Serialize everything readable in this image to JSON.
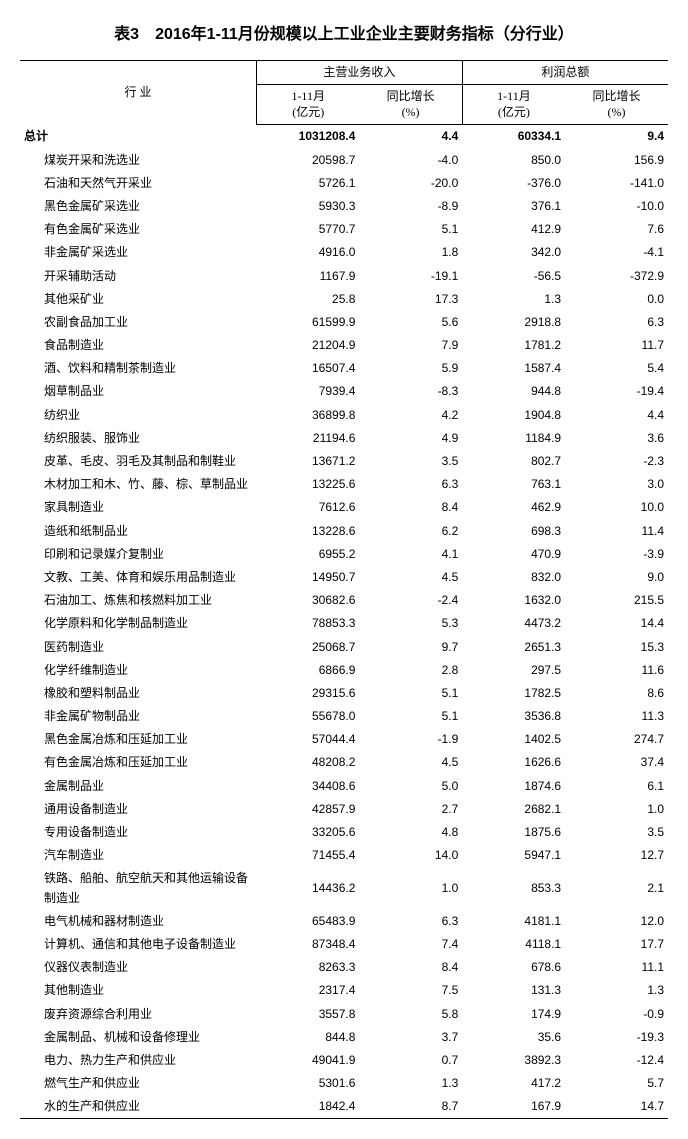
{
  "title": "表3　2016年1-11月份规模以上工业企业主要财务指标（分行业）",
  "header": {
    "industry": "行 业",
    "group1": "主营业务收入",
    "group2": "利润总额",
    "sub_period_line1": "1-11月",
    "sub_period_line2": "(亿元)",
    "sub_growth_line1": "同比增长",
    "sub_growth_line2": "(%)"
  },
  "total": {
    "label": "总计",
    "v1": "1031208.4",
    "v2": "4.4",
    "v3": "60334.1",
    "v4": "9.4"
  },
  "rows": [
    {
      "label": "煤炭开采和洗选业",
      "v1": "20598.7",
      "v2": "-4.0",
      "v3": "850.0",
      "v4": "156.9"
    },
    {
      "label": "石油和天然气开采业",
      "v1": "5726.1",
      "v2": "-20.0",
      "v3": "-376.0",
      "v4": "-141.0"
    },
    {
      "label": "黑色金属矿采选业",
      "v1": "5930.3",
      "v2": "-8.9",
      "v3": "376.1",
      "v4": "-10.0"
    },
    {
      "label": "有色金属矿采选业",
      "v1": "5770.7",
      "v2": "5.1",
      "v3": "412.9",
      "v4": "7.6"
    },
    {
      "label": "非金属矿采选业",
      "v1": "4916.0",
      "v2": "1.8",
      "v3": "342.0",
      "v4": "-4.1"
    },
    {
      "label": "开采辅助活动",
      "v1": "1167.9",
      "v2": "-19.1",
      "v3": "-56.5",
      "v4": "-372.9"
    },
    {
      "label": "其他采矿业",
      "v1": "25.8",
      "v2": "17.3",
      "v3": "1.3",
      "v4": "0.0"
    },
    {
      "label": "农副食品加工业",
      "v1": "61599.9",
      "v2": "5.6",
      "v3": "2918.8",
      "v4": "6.3"
    },
    {
      "label": "食品制造业",
      "v1": "21204.9",
      "v2": "7.9",
      "v3": "1781.2",
      "v4": "11.7"
    },
    {
      "label": "酒、饮料和精制茶制造业",
      "v1": "16507.4",
      "v2": "5.9",
      "v3": "1587.4",
      "v4": "5.4"
    },
    {
      "label": "烟草制品业",
      "v1": "7939.4",
      "v2": "-8.3",
      "v3": "944.8",
      "v4": "-19.4"
    },
    {
      "label": "纺织业",
      "v1": "36899.8",
      "v2": "4.2",
      "v3": "1904.8",
      "v4": "4.4"
    },
    {
      "label": "纺织服装、服饰业",
      "v1": "21194.6",
      "v2": "4.9",
      "v3": "1184.9",
      "v4": "3.6"
    },
    {
      "label": "皮革、毛皮、羽毛及其制品和制鞋业",
      "v1": "13671.2",
      "v2": "3.5",
      "v3": "802.7",
      "v4": "-2.3"
    },
    {
      "label": "木材加工和木、竹、藤、棕、草制品业",
      "v1": "13225.6",
      "v2": "6.3",
      "v3": "763.1",
      "v4": "3.0"
    },
    {
      "label": "家具制造业",
      "v1": "7612.6",
      "v2": "8.4",
      "v3": "462.9",
      "v4": "10.0"
    },
    {
      "label": "造纸和纸制品业",
      "v1": "13228.6",
      "v2": "6.2",
      "v3": "698.3",
      "v4": "11.4"
    },
    {
      "label": "印刷和记录媒介复制业",
      "v1": "6955.2",
      "v2": "4.1",
      "v3": "470.9",
      "v4": "-3.9"
    },
    {
      "label": "文教、工美、体育和娱乐用品制造业",
      "v1": "14950.7",
      "v2": "4.5",
      "v3": "832.0",
      "v4": "9.0"
    },
    {
      "label": "石油加工、炼焦和核燃料加工业",
      "v1": "30682.6",
      "v2": "-2.4",
      "v3": "1632.0",
      "v4": "215.5"
    },
    {
      "label": "化学原料和化学制品制造业",
      "v1": "78853.3",
      "v2": "5.3",
      "v3": "4473.2",
      "v4": "14.4"
    },
    {
      "label": "医药制造业",
      "v1": "25068.7",
      "v2": "9.7",
      "v3": "2651.3",
      "v4": "15.3"
    },
    {
      "label": "化学纤维制造业",
      "v1": "6866.9",
      "v2": "2.8",
      "v3": "297.5",
      "v4": "11.6"
    },
    {
      "label": "橡胶和塑料制品业",
      "v1": "29315.6",
      "v2": "5.1",
      "v3": "1782.5",
      "v4": "8.6"
    },
    {
      "label": "非金属矿物制品业",
      "v1": "55678.0",
      "v2": "5.1",
      "v3": "3536.8",
      "v4": "11.3"
    },
    {
      "label": "黑色金属冶炼和压延加工业",
      "v1": "57044.4",
      "v2": "-1.9",
      "v3": "1402.5",
      "v4": "274.7"
    },
    {
      "label": "有色金属冶炼和压延加工业",
      "v1": "48208.2",
      "v2": "4.5",
      "v3": "1626.6",
      "v4": "37.4"
    },
    {
      "label": "金属制品业",
      "v1": "34408.6",
      "v2": "5.0",
      "v3": "1874.6",
      "v4": "6.1"
    },
    {
      "label": "通用设备制造业",
      "v1": "42857.9",
      "v2": "2.7",
      "v3": "2682.1",
      "v4": "1.0"
    },
    {
      "label": "专用设备制造业",
      "v1": "33205.6",
      "v2": "4.8",
      "v3": "1875.6",
      "v4": "3.5"
    },
    {
      "label": "汽车制造业",
      "v1": "71455.4",
      "v2": "14.0",
      "v3": "5947.1",
      "v4": "12.7"
    },
    {
      "label": "铁路、船舶、航空航天和其他运输设备制造业",
      "v1": "14436.2",
      "v2": "1.0",
      "v3": "853.3",
      "v4": "2.1"
    },
    {
      "label": "电气机械和器材制造业",
      "v1": "65483.9",
      "v2": "6.3",
      "v3": "4181.1",
      "v4": "12.0"
    },
    {
      "label": "计算机、通信和其他电子设备制造业",
      "v1": "87348.4",
      "v2": "7.4",
      "v3": "4118.1",
      "v4": "17.7"
    },
    {
      "label": "仪器仪表制造业",
      "v1": "8263.3",
      "v2": "8.4",
      "v3": "678.6",
      "v4": "11.1"
    },
    {
      "label": "其他制造业",
      "v1": "2317.4",
      "v2": "7.5",
      "v3": "131.3",
      "v4": "1.3"
    },
    {
      "label": "废弃资源综合利用业",
      "v1": "3557.8",
      "v2": "5.8",
      "v3": "174.9",
      "v4": "-0.9"
    },
    {
      "label": "金属制品、机械和设备修理业",
      "v1": "844.8",
      "v2": "3.7",
      "v3": "35.6",
      "v4": "-19.3"
    },
    {
      "label": "电力、热力生产和供应业",
      "v1": "49041.9",
      "v2": "0.7",
      "v3": "3892.3",
      "v4": "-12.4"
    },
    {
      "label": "燃气生产和供应业",
      "v1": "5301.6",
      "v2": "1.3",
      "v3": "417.2",
      "v4": "5.7"
    },
    {
      "label": "水的生产和供应业",
      "v1": "1842.4",
      "v2": "8.7",
      "v3": "167.9",
      "v4": "14.7"
    }
  ]
}
